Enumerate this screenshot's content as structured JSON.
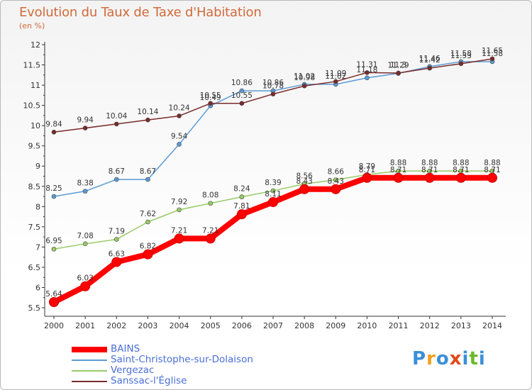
{
  "header": {
    "title": "Evolution du Taux de Taxe d'Habitation",
    "subtitle": "(en %)"
  },
  "logo": {
    "letters": [
      "P",
      "r",
      "o",
      "x",
      "i",
      "t",
      "i"
    ],
    "colors": [
      "#3a8fd8",
      "#f0a020",
      "#3a8fd8",
      "#e04a1a",
      "#3a8fd8",
      "#6aba2a",
      "#3a8fd8"
    ]
  },
  "chart_data": {
    "type": "line",
    "x": [
      2000,
      2001,
      2002,
      2003,
      2004,
      2005,
      2006,
      2007,
      2008,
      2009,
      2010,
      2011,
      2012,
      2013,
      2014
    ],
    "xlim": [
      2000,
      2014
    ],
    "ylim": [
      5.5,
      12
    ],
    "yticks": [
      "5.5",
      "6",
      "6.5",
      "7",
      "7.5",
      "8",
      "8.5",
      "9",
      "9.5",
      "10",
      "10.5",
      "11",
      "11.5",
      "12"
    ],
    "grid": false,
    "legend_position": "bottom-left",
    "series": [
      {
        "name": "BAINS",
        "color": "#ff0000",
        "values": [
          5.64,
          6.03,
          6.63,
          6.82,
          7.21,
          7.21,
          7.81,
          8.11,
          8.43,
          8.43,
          8.71,
          8.71,
          8.71,
          8.71,
          8.71
        ],
        "labels": [
          "5.64",
          "6.03",
          "6.63",
          "6.82",
          "7.21",
          "7.21",
          "7.81",
          "8.11",
          "8.43",
          "8.43",
          "8.71",
          "8.71",
          "8.71",
          "8.71",
          "8.71"
        ]
      },
      {
        "name": "Saint-Christophe-sur-Dolaison",
        "color": "#5b9bd5",
        "values": [
          8.25,
          8.38,
          8.67,
          8.67,
          9.54,
          10.49,
          10.86,
          10.86,
          11.02,
          11.02,
          11.18,
          11.29,
          11.46,
          11.58,
          11.58
        ],
        "labels": [
          "8.25",
          "8.38",
          "8.67",
          "8.67",
          "9.54",
          "10.49",
          "10.86",
          "10.86",
          "11.02",
          "11.02",
          "11.18",
          "11.29",
          "11.46",
          "11.58",
          "11.58"
        ]
      },
      {
        "name": "Vergezac",
        "color": "#99cc66",
        "values": [
          6.95,
          7.08,
          7.19,
          7.62,
          7.92,
          8.08,
          8.24,
          8.39,
          8.56,
          8.66,
          8.79,
          8.88,
          8.88,
          8.88,
          8.88
        ],
        "labels": [
          "6.95",
          "7.08",
          "7.19",
          "7.62",
          "7.92",
          "8.08",
          "8.24",
          "8.39",
          "8.56",
          "8.66",
          "8.79",
          "8.88",
          "8.88",
          "8.88",
          "8.88"
        ]
      },
      {
        "name": "Sanssac-l'Église",
        "color": "#7b2b2b",
        "values": [
          9.84,
          9.94,
          10.04,
          10.14,
          10.24,
          10.55,
          10.55,
          10.78,
          10.98,
          11.09,
          11.31,
          11.3,
          11.42,
          11.53,
          11.65
        ],
        "labels": [
          "9.84",
          "9.94",
          "10.04",
          "10.14",
          "10.24",
          "10.55",
          "10.55",
          "10.78",
          "10.98",
          "11.09",
          "11.31",
          "11.3",
          "11.42",
          "11.53",
          "11.65"
        ]
      }
    ]
  }
}
